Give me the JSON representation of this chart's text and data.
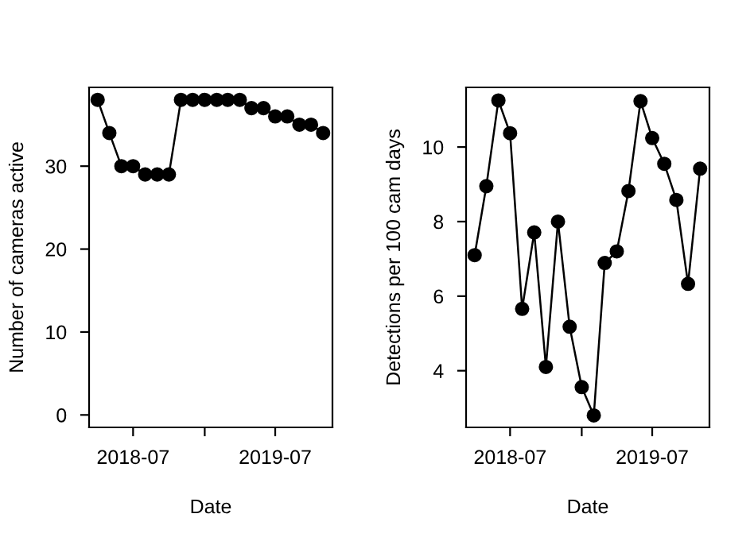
{
  "chart_data": [
    {
      "type": "line",
      "xlabel": "Date",
      "ylabel": "Number of cameras active",
      "marker": "circle",
      "line_style": "solid",
      "x": [
        "2018-04",
        "2018-05",
        "2018-06",
        "2018-07",
        "2018-08",
        "2018-09",
        "2018-10",
        "2018-11",
        "2018-12",
        "2019-01",
        "2019-02",
        "2019-03",
        "2019-04",
        "2019-05",
        "2019-06",
        "2019-07",
        "2019-08",
        "2019-09",
        "2019-10",
        "2019-11"
      ],
      "series": [
        {
          "color": "#000000",
          "values": [
            38,
            34,
            30,
            30,
            29,
            29,
            29,
            38,
            38,
            38,
            38,
            38,
            38,
            37,
            37,
            36,
            36,
            35,
            35,
            34
          ]
        }
      ],
      "xlim": [
        "2018-03-10",
        "2019-11-25"
      ],
      "xticks": [
        {
          "value": "2018-07",
          "label": "2018-07"
        },
        {
          "value": "2019-01",
          "label": null
        },
        {
          "value": "2019-07",
          "label": "2019-07"
        }
      ],
      "ylim": [
        -1.5,
        39.5
      ],
      "yticks": [
        0,
        10,
        20,
        30
      ],
      "grid": false,
      "legend": false
    },
    {
      "type": "line",
      "xlabel": "Date",
      "ylabel": "Detections per 100 cam days",
      "marker": "circle",
      "line_style": "solid",
      "x": [
        "2018-04",
        "2018-05",
        "2018-06",
        "2018-07",
        "2018-08",
        "2018-09",
        "2018-10",
        "2018-11",
        "2018-12",
        "2019-01",
        "2019-02",
        "2019-03",
        "2019-04",
        "2019-05",
        "2019-06",
        "2019-07",
        "2019-08",
        "2019-09",
        "2019-10",
        "2019-11"
      ],
      "series": [
        {
          "color": "#000000",
          "values": [
            7.1,
            8.95,
            11.25,
            10.37,
            5.66,
            7.71,
            4.1,
            8.0,
            5.18,
            3.56,
            2.8,
            6.89,
            7.2,
            8.82,
            11.23,
            10.24,
            9.55,
            8.58,
            6.33,
            9.42
          ]
        }
      ],
      "xlim": [
        "2018-03-10",
        "2019-11-25"
      ],
      "xticks": [
        {
          "value": "2018-07",
          "label": "2018-07"
        },
        {
          "value": "2019-01",
          "label": null
        },
        {
          "value": "2019-07",
          "label": "2019-07"
        }
      ],
      "ylim": [
        2.48,
        11.6
      ],
      "yticks": [
        4,
        6,
        8,
        10
      ],
      "grid": false,
      "legend": false
    }
  ]
}
